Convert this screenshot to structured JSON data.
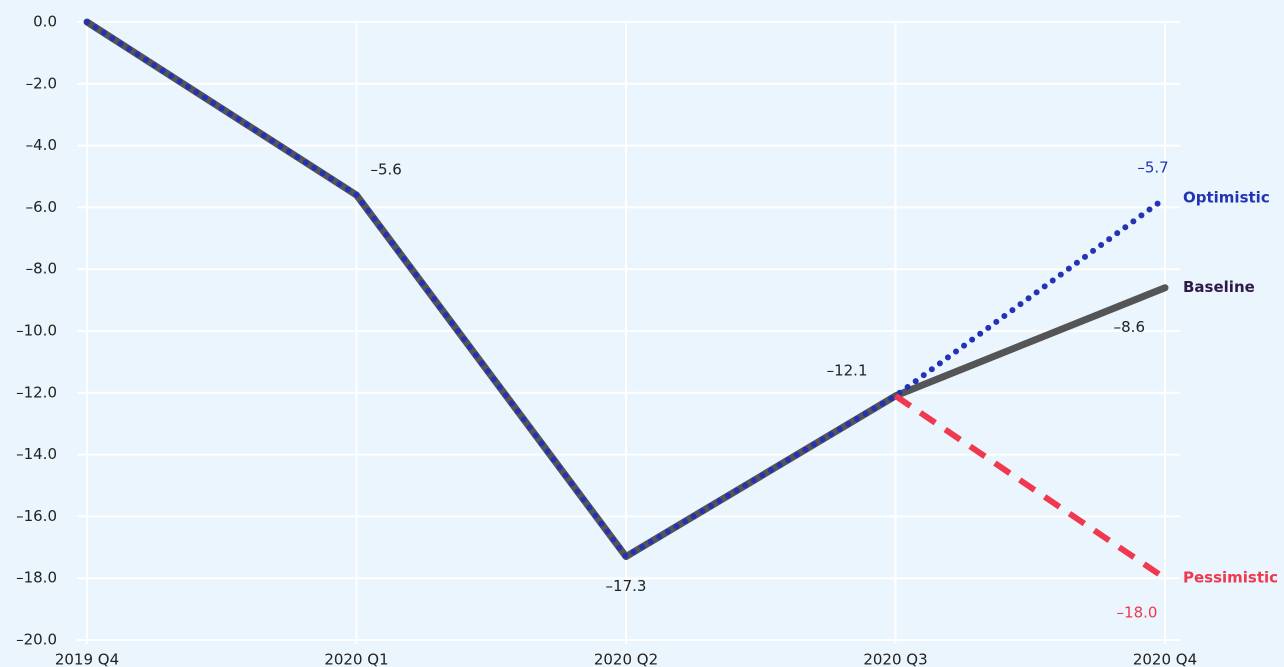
{
  "chart_data": {
    "type": "line",
    "categories": [
      "2019 Q4",
      "2020 Q1",
      "2020 Q2",
      "2020 Q3",
      "2020 Q4"
    ],
    "series": [
      {
        "name": "Baseline",
        "color": "#555555",
        "label_color": "#2e1a47",
        "style": "solid",
        "values": [
          0,
          -5.6,
          -17.3,
          -12.1,
          -8.6
        ],
        "value_labels": [
          null,
          "–5.6",
          "–17.3",
          "–12.1",
          "–8.6"
        ]
      },
      {
        "name": "Optimistic",
        "color": "#2433b5",
        "label_color": "#2433b5",
        "style": "dotted",
        "values": [
          0,
          -5.6,
          -17.3,
          -12.1,
          -5.7
        ],
        "value_labels": [
          null,
          null,
          null,
          null,
          "–5.7"
        ]
      },
      {
        "name": "Pessimistic",
        "color": "#f0384f",
        "label_color": "#f0384f",
        "style": "dashed",
        "values": [
          null,
          null,
          null,
          -12.1,
          -18.0
        ],
        "value_labels": [
          null,
          null,
          null,
          null,
          "–18.0"
        ]
      }
    ],
    "ylim": [
      -20,
      0
    ],
    "yticks": [
      {
        "value": 0,
        "label": "0.0"
      },
      {
        "value": -2,
        "label": "–2.0"
      },
      {
        "value": -4,
        "label": "–4.0"
      },
      {
        "value": -6,
        "label": "–6.0"
      },
      {
        "value": -8,
        "label": "–8.0"
      },
      {
        "value": -10,
        "label": "–10.0"
      },
      {
        "value": -12,
        "label": "–12.0"
      },
      {
        "value": -14,
        "label": "–14.0"
      },
      {
        "value": -16,
        "label": "–16.0"
      },
      {
        "value": -18,
        "label": "–18.0"
      },
      {
        "value": -20,
        "label": "–20.0"
      }
    ],
    "grid": true
  }
}
